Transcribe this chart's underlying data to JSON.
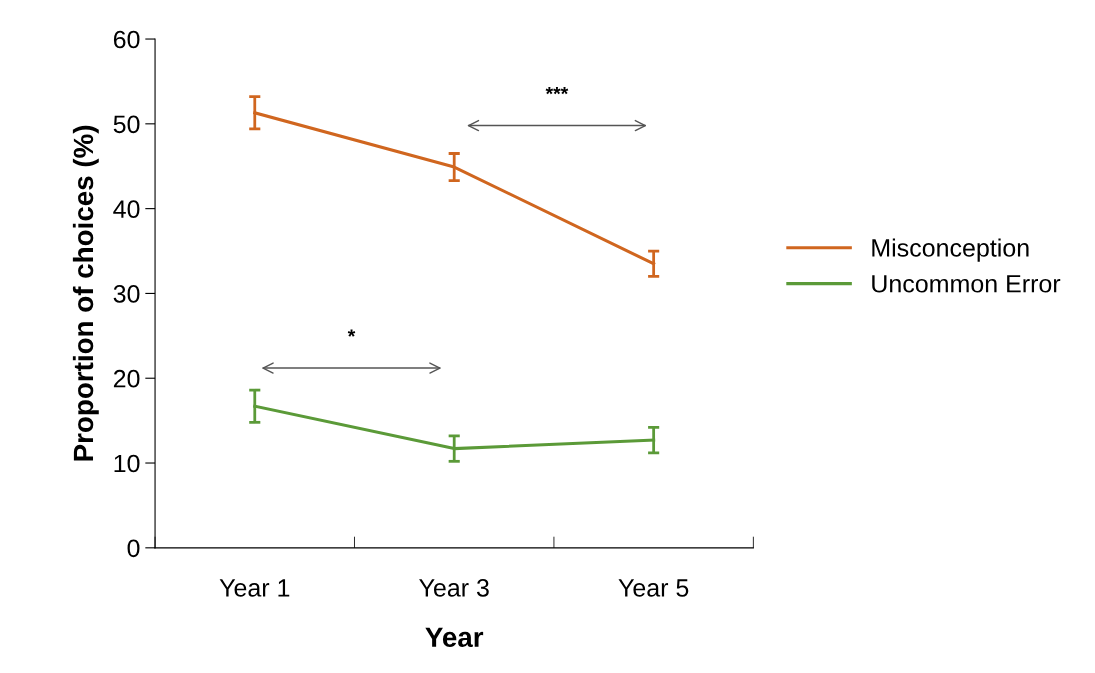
{
  "chart_data": {
    "type": "line",
    "xlabel": "Year",
    "ylabel": "Proportion of choices (%)",
    "categories": [
      "Year 1",
      "Year 3",
      "Year 5"
    ],
    "series": [
      {
        "name": "Misconception",
        "color": "#d0661f",
        "values": [
          51.3,
          44.9,
          33.5
        ],
        "errors": [
          1.9,
          1.6,
          1.5
        ]
      },
      {
        "name": "Uncommon Error",
        "color": "#5b9a38",
        "values": [
          16.7,
          11.7,
          12.7
        ],
        "errors": [
          1.9,
          1.5,
          1.5
        ]
      }
    ],
    "ylim": [
      0,
      60
    ],
    "yticks": [
      0,
      10,
      20,
      30,
      40,
      50,
      60
    ],
    "annotations": [
      "***",
      "*"
    ],
    "legend": "right",
    "grid": false,
    "marker": "none",
    "line_style": "solid"
  }
}
